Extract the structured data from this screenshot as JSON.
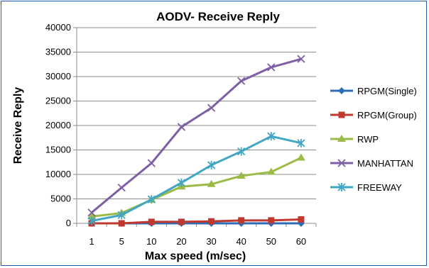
{
  "chart_data": {
    "type": "line",
    "title": "AODV- Receive Reply",
    "xlabel": "Max speed (m/sec)",
    "ylabel": "Receive Reply",
    "categories": [
      "1",
      "5",
      "10",
      "20",
      "30",
      "40",
      "50",
      "60"
    ],
    "ylim": [
      0,
      40000
    ],
    "yticks": [
      0,
      5000,
      10000,
      15000,
      20000,
      25000,
      30000,
      35000,
      40000
    ],
    "grid": true,
    "legend_position": "right",
    "series": [
      {
        "name": "RPGM(Single)",
        "color": "#2e6db5",
        "marker": "diamond",
        "values": [
          0,
          0,
          0,
          0,
          0,
          0,
          0,
          0
        ]
      },
      {
        "name": "RPGM(Group)",
        "color": "#c0392f",
        "marker": "square",
        "values": [
          0,
          0,
          300,
          300,
          400,
          600,
          600,
          800
        ]
      },
      {
        "name": "RWP",
        "color": "#9bbb46",
        "marker": "triangle",
        "values": [
          1400,
          2100,
          4800,
          7500,
          8000,
          9700,
          10500,
          13400
        ]
      },
      {
        "name": "MANHATTAN",
        "color": "#7d5fa5",
        "marker": "x",
        "values": [
          2200,
          7300,
          12300,
          19700,
          23600,
          29100,
          31900,
          33600
        ]
      },
      {
        "name": "FREEWAY",
        "color": "#41a6c4",
        "marker": "star",
        "values": [
          500,
          1700,
          4900,
          8300,
          11900,
          14700,
          17800,
          16400
        ]
      }
    ]
  }
}
